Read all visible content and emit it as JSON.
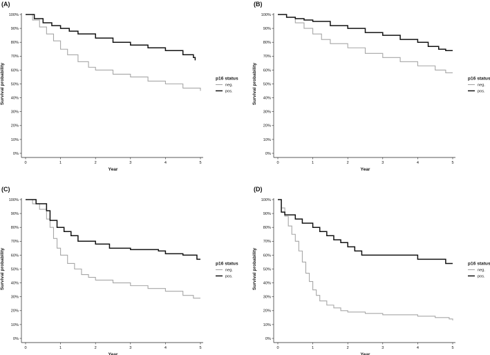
{
  "figure": {
    "panel_letters": [
      "(A)",
      "(B)",
      "(C)",
      "(D)"
    ],
    "xlabel": "Year",
    "ylabel": "Survival probability",
    "legend_title": "p16 status"
  },
  "chart_data": [
    {
      "type": "line",
      "panel": "(A)",
      "xlabel": "Year",
      "ylabel": "Survival probability",
      "xlim": [
        0,
        5
      ],
      "ylim": [
        0,
        100
      ],
      "x_ticks": [
        "0",
        "1",
        "2",
        "3",
        "4",
        "5"
      ],
      "y_ticks": [
        "0%",
        "10%",
        "20%",
        "30%",
        "40%",
        "50%",
        "60%",
        "70%",
        "80%",
        "90%",
        "100%"
      ],
      "legend": {
        "title": "p16 status",
        "position": "right"
      },
      "series": [
        {
          "name": "neg.",
          "color": "#a6a6a6",
          "x": [
            0,
            0.2,
            0.4,
            0.6,
            0.8,
            1.0,
            1.2,
            1.5,
            1.8,
            2.0,
            2.5,
            3.0,
            3.5,
            4.0,
            4.5,
            5.0
          ],
          "y": [
            100,
            96,
            91,
            86,
            81,
            75,
            71,
            66,
            62,
            60,
            57,
            55,
            52,
            50,
            47,
            45
          ]
        },
        {
          "name": "pos.",
          "color": "#111111",
          "x": [
            0,
            0.25,
            0.5,
            0.75,
            1.0,
            1.25,
            1.5,
            2.0,
            2.5,
            3.0,
            3.5,
            4.0,
            4.5,
            4.8,
            4.85
          ],
          "y": [
            100,
            97,
            94,
            92,
            90,
            88,
            86,
            83,
            80,
            78,
            76,
            74,
            71,
            69,
            67
          ]
        }
      ]
    },
    {
      "type": "line",
      "panel": "(B)",
      "xlabel": "Year",
      "ylabel": "Survival probability",
      "xlim": [
        0,
        5
      ],
      "ylim": [
        0,
        100
      ],
      "x_ticks": [
        "0",
        "1",
        "2",
        "3",
        "4",
        "5"
      ],
      "y_ticks": [
        "0%",
        "10%",
        "20%",
        "30%",
        "40%",
        "50%",
        "60%",
        "70%",
        "80%",
        "90%",
        "100%"
      ],
      "legend": {
        "title": "p16 status",
        "position": "right"
      },
      "series": [
        {
          "name": "neg.",
          "color": "#a6a6a6",
          "x": [
            0,
            0.25,
            0.5,
            0.75,
            1.0,
            1.25,
            1.5,
            2.0,
            2.5,
            3.0,
            3.5,
            4.0,
            4.5,
            4.8,
            5.0
          ],
          "y": [
            100,
            98,
            94,
            90,
            86,
            82,
            79,
            76,
            72,
            69,
            66,
            63,
            60,
            58,
            58
          ]
        },
        {
          "name": "pos.",
          "color": "#111111",
          "x": [
            0,
            0.25,
            0.5,
            0.75,
            1.0,
            1.5,
            2.0,
            2.5,
            3.0,
            3.5,
            4.0,
            4.3,
            4.6,
            4.8,
            5.0
          ],
          "y": [
            100,
            98,
            97,
            96,
            95,
            92,
            90,
            87,
            85,
            82,
            80,
            77,
            75,
            74,
            74
          ]
        }
      ]
    },
    {
      "type": "line",
      "panel": "(C)",
      "xlabel": "Year",
      "ylabel": "Survival probability",
      "xlim": [
        0,
        5
      ],
      "ylim": [
        0,
        100
      ],
      "x_ticks": [
        "0",
        "1",
        "2",
        "3",
        "4",
        "5"
      ],
      "y_ticks": [
        "0%",
        "10%",
        "20%",
        "30%",
        "40%",
        "50%",
        "60%",
        "70%",
        "80%",
        "90%",
        "100%"
      ],
      "legend": {
        "title": "p16 status",
        "position": "right"
      },
      "series": [
        {
          "name": "neg.",
          "color": "#a6a6a6",
          "x": [
            0,
            0.2,
            0.4,
            0.6,
            0.7,
            0.8,
            0.9,
            1.0,
            1.2,
            1.4,
            1.6,
            1.8,
            2.0,
            2.5,
            3.0,
            3.5,
            4.0,
            4.5,
            4.8,
            5.0
          ],
          "y": [
            100,
            97,
            93,
            86,
            80,
            72,
            65,
            60,
            54,
            50,
            46,
            44,
            42,
            40,
            38,
            36,
            34,
            31,
            29,
            29
          ]
        },
        {
          "name": "pos.",
          "color": "#111111",
          "x": [
            0,
            0.3,
            0.6,
            0.7,
            0.9,
            1.1,
            1.3,
            1.5,
            2.0,
            2.4,
            3.0,
            3.8,
            4.0,
            4.5,
            4.8,
            4.9,
            5.0
          ],
          "y": [
            100,
            97,
            92,
            85,
            80,
            77,
            74,
            70,
            68,
            65,
            64,
            63,
            61,
            60,
            60,
            57,
            57
          ]
        }
      ]
    },
    {
      "type": "line",
      "panel": "(D)",
      "xlabel": "Year",
      "ylabel": "Survival probability",
      "xlim": [
        0,
        5
      ],
      "ylim": [
        0,
        100
      ],
      "x_ticks": [
        "0",
        "1",
        "2",
        "3",
        "4",
        "5"
      ],
      "y_ticks": [
        "0%",
        "10%",
        "20%",
        "30%",
        "40%",
        "50%",
        "60%",
        "70%",
        "80%",
        "90%",
        "100%"
      ],
      "legend": {
        "title": "p16 status",
        "position": "right"
      },
      "series": [
        {
          "name": "neg.",
          "color": "#a6a6a6",
          "x": [
            0,
            0.1,
            0.2,
            0.3,
            0.4,
            0.5,
            0.6,
            0.7,
            0.8,
            0.9,
            1.0,
            1.1,
            1.2,
            1.4,
            1.6,
            1.8,
            2.0,
            2.5,
            3.0,
            3.5,
            4.0,
            4.5,
            4.9,
            5.0
          ],
          "y": [
            100,
            94,
            88,
            81,
            75,
            70,
            63,
            55,
            47,
            41,
            35,
            31,
            27,
            24,
            22,
            20,
            19,
            18,
            17,
            17,
            16,
            15,
            14,
            13
          ]
        },
        {
          "name": "pos.",
          "color": "#111111",
          "x": [
            0,
            0.1,
            0.2,
            0.5,
            0.7,
            1.0,
            1.2,
            1.4,
            1.6,
            1.8,
            2.0,
            2.2,
            2.4,
            2.6,
            3.0,
            4.0,
            4.8,
            5.0
          ],
          "y": [
            100,
            91,
            89,
            86,
            83,
            80,
            77,
            74,
            71,
            69,
            66,
            63,
            60,
            60,
            60,
            57,
            54,
            54
          ]
        }
      ]
    }
  ]
}
